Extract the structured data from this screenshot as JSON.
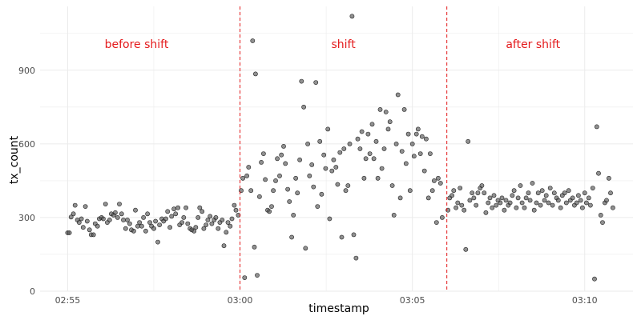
{
  "chart_data": {
    "type": "scatter",
    "title": "",
    "xlabel": "timestamp",
    "ylabel": "tx_count",
    "x_unit": "time (HH:MM)",
    "xlim": [
      "02:54:12",
      "03:11:24"
    ],
    "ylim": [
      0,
      1160
    ],
    "x_ticks": [
      "02:55",
      "03:00",
      "03:05",
      "03:10"
    ],
    "y_ticks": [
      0,
      300,
      600,
      900
    ],
    "grid": true,
    "colors": {
      "points": "#555555",
      "annotation": "#e41a1c",
      "grid": "#ebebeb"
    },
    "vlines": [
      "03:00",
      "03:06"
    ],
    "annotations": [
      {
        "x": "02:57:00",
        "y": 990,
        "text": "before shift"
      },
      {
        "x": "03:03:00",
        "y": 990,
        "text": "shift"
      },
      {
        "x": "03:08:30",
        "y": 990,
        "text": "after shift"
      }
    ],
    "points": [
      [
        "02:55:00",
        238
      ],
      [
        "02:55:03",
        238
      ],
      [
        "02:55:06",
        302
      ],
      [
        "02:55:10",
        315
      ],
      [
        "02:55:13",
        350
      ],
      [
        "02:55:17",
        290
      ],
      [
        "02:55:20",
        280
      ],
      [
        "02:55:24",
        295
      ],
      [
        "02:55:27",
        260
      ],
      [
        "02:55:31",
        345
      ],
      [
        "02:55:34",
        285
      ],
      [
        "02:55:38",
        250
      ],
      [
        "02:55:41",
        230
      ],
      [
        "02:55:45",
        230
      ],
      [
        "02:55:48",
        275
      ],
      [
        "02:55:52",
        265
      ],
      [
        "02:55:55",
        295
      ],
      [
        "02:55:59",
        300
      ],
      [
        "02:56:02",
        295
      ],
      [
        "02:56:06",
        355
      ],
      [
        "02:56:09",
        280
      ],
      [
        "02:56:13",
        290
      ],
      [
        "02:56:16",
        315
      ],
      [
        "02:56:20",
        310
      ],
      [
        "02:56:23",
        320
      ],
      [
        "02:56:27",
        300
      ],
      [
        "02:56:30",
        355
      ],
      [
        "02:56:34",
        315
      ],
      [
        "02:56:37",
        290
      ],
      [
        "02:56:41",
        255
      ],
      [
        "02:56:44",
        290
      ],
      [
        "02:56:48",
        275
      ],
      [
        "02:56:51",
        250
      ],
      [
        "02:56:55",
        245
      ],
      [
        "02:56:58",
        330
      ],
      [
        "02:57:02",
        265
      ],
      [
        "02:57:05",
        280
      ],
      [
        "02:57:09",
        265
      ],
      [
        "02:57:12",
        300
      ],
      [
        "02:57:16",
        245
      ],
      [
        "02:57:19",
        315
      ],
      [
        "02:57:23",
        280
      ],
      [
        "02:57:26",
        265
      ],
      [
        "02:57:30",
        255
      ],
      [
        "02:57:33",
        285
      ],
      [
        "02:57:37",
        200
      ],
      [
        "02:57:40",
        270
      ],
      [
        "02:57:44",
        295
      ],
      [
        "02:57:47",
        285
      ],
      [
        "02:57:51",
        295
      ],
      [
        "02:57:54",
        325
      ],
      [
        "02:57:58",
        260
      ],
      [
        "02:58:01",
        305
      ],
      [
        "02:58:05",
        335
      ],
      [
        "02:58:08",
        315
      ],
      [
        "02:58:12",
        340
      ],
      [
        "02:58:15",
        270
      ],
      [
        "02:58:19",
        280
      ],
      [
        "02:58:22",
        300
      ],
      [
        "02:58:26",
        340
      ],
      [
        "02:58:29",
        275
      ],
      [
        "02:58:33",
        255
      ],
      [
        "02:58:36",
        250
      ],
      [
        "02:58:40",
        245
      ],
      [
        "02:58:43",
        260
      ],
      [
        "02:58:47",
        300
      ],
      [
        "02:58:50",
        340
      ],
      [
        "02:58:54",
        325
      ],
      [
        "02:58:57",
        255
      ],
      [
        "02:59:01",
        270
      ],
      [
        "02:59:04",
        290
      ],
      [
        "02:59:08",
        305
      ],
      [
        "02:59:11",
        275
      ],
      [
        "02:59:15",
        290
      ],
      [
        "02:59:18",
        300
      ],
      [
        "02:59:22",
        255
      ],
      [
        "02:59:25",
        280
      ],
      [
        "02:59:29",
        290
      ],
      [
        "02:59:32",
        185
      ],
      [
        "02:59:36",
        240
      ],
      [
        "02:59:39",
        280
      ],
      [
        "02:59:43",
        265
      ],
      [
        "02:59:46",
        295
      ],
      [
        "02:59:50",
        350
      ],
      [
        "02:59:53",
        330
      ],
      [
        "02:59:57",
        310
      ],
      [
        "03:00:02",
        410
      ],
      [
        "03:00:05",
        460
      ],
      [
        "03:00:08",
        55
      ],
      [
        "03:00:12",
        470
      ],
      [
        "03:00:15",
        505
      ],
      [
        "03:00:19",
        410
      ],
      [
        "03:00:22",
        1020
      ],
      [
        "03:00:25",
        180
      ],
      [
        "03:00:27",
        885
      ],
      [
        "03:00:30",
        65
      ],
      [
        "03:00:34",
        385
      ],
      [
        "03:00:37",
        525
      ],
      [
        "03:00:41",
        560
      ],
      [
        "03:00:44",
        455
      ],
      [
        "03:00:48",
        330
      ],
      [
        "03:00:51",
        325
      ],
      [
        "03:00:55",
        345
      ],
      [
        "03:00:58",
        410
      ],
      [
        "03:01:02",
        450
      ],
      [
        "03:01:05",
        540
      ],
      [
        "03:01:09",
        470
      ],
      [
        "03:01:12",
        555
      ],
      [
        "03:01:16",
        590
      ],
      [
        "03:01:19",
        520
      ],
      [
        "03:01:23",
        415
      ],
      [
        "03:01:26",
        365
      ],
      [
        "03:01:30",
        220
      ],
      [
        "03:01:33",
        310
      ],
      [
        "03:01:37",
        460
      ],
      [
        "03:01:40",
        400
      ],
      [
        "03:01:44",
        535
      ],
      [
        "03:01:47",
        855
      ],
      [
        "03:01:51",
        750
      ],
      [
        "03:01:54",
        175
      ],
      [
        "03:01:58",
        600
      ],
      [
        "03:02:01",
        470
      ],
      [
        "03:02:05",
        515
      ],
      [
        "03:02:08",
        425
      ],
      [
        "03:02:12",
        850
      ],
      [
        "03:02:15",
        345
      ],
      [
        "03:02:19",
        610
      ],
      [
        "03:02:22",
        395
      ],
      [
        "03:02:26",
        555
      ],
      [
        "03:02:29",
        500
      ],
      [
        "03:02:33",
        660
      ],
      [
        "03:02:36",
        295
      ],
      [
        "03:02:40",
        490
      ],
      [
        "03:02:43",
        535
      ],
      [
        "03:02:47",
        505
      ],
      [
        "03:02:50",
        435
      ],
      [
        "03:02:54",
        565
      ],
      [
        "03:02:57",
        220
      ],
      [
        "03:03:01",
        580
      ],
      [
        "03:03:04",
        410
      ],
      [
        "03:03:08",
        430
      ],
      [
        "03:03:11",
        600
      ],
      [
        "03:03:15",
        1120
      ],
      [
        "03:03:18",
        230
      ],
      [
        "03:03:22",
        135
      ],
      [
        "03:03:25",
        620
      ],
      [
        "03:03:29",
        580
      ],
      [
        "03:03:32",
        650
      ],
      [
        "03:03:36",
        460
      ],
      [
        "03:03:39",
        540
      ],
      [
        "03:03:43",
        640
      ],
      [
        "03:03:46",
        560
      ],
      [
        "03:03:50",
        680
      ],
      [
        "03:03:53",
        540
      ],
      [
        "03:03:57",
        610
      ],
      [
        "03:04:00",
        460
      ],
      [
        "03:04:04",
        740
      ],
      [
        "03:04:07",
        500
      ],
      [
        "03:04:11",
        580
      ],
      [
        "03:04:14",
        730
      ],
      [
        "03:04:18",
        660
      ],
      [
        "03:04:21",
        690
      ],
      [
        "03:04:25",
        430
      ],
      [
        "03:04:28",
        310
      ],
      [
        "03:04:32",
        600
      ],
      [
        "03:04:35",
        800
      ],
      [
        "03:04:39",
        380
      ],
      [
        "03:04:42",
        570
      ],
      [
        "03:04:46",
        740
      ],
      [
        "03:04:49",
        520
      ],
      [
        "03:04:53",
        640
      ],
      [
        "03:04:56",
        410
      ],
      [
        "03:05:00",
        600
      ],
      [
        "03:05:03",
        550
      ],
      [
        "03:05:07",
        640
      ],
      [
        "03:05:10",
        660
      ],
      [
        "03:05:14",
        560
      ],
      [
        "03:05:17",
        630
      ],
      [
        "03:05:21",
        490
      ],
      [
        "03:05:24",
        620
      ],
      [
        "03:05:28",
        380
      ],
      [
        "03:05:31",
        560
      ],
      [
        "03:05:35",
        410
      ],
      [
        "03:05:38",
        450
      ],
      [
        "03:05:42",
        280
      ],
      [
        "03:05:45",
        460
      ],
      [
        "03:05:49",
        440
      ],
      [
        "03:05:52",
        300
      ],
      [
        "03:06:02",
        330
      ],
      [
        "03:06:05",
        380
      ],
      [
        "03:06:09",
        390
      ],
      [
        "03:06:12",
        410
      ],
      [
        "03:06:16",
        340
      ],
      [
        "03:06:19",
        360
      ],
      [
        "03:06:23",
        420
      ],
      [
        "03:06:26",
        350
      ],
      [
        "03:06:30",
        330
      ],
      [
        "03:06:33",
        170
      ],
      [
        "03:06:37",
        610
      ],
      [
        "03:06:40",
        370
      ],
      [
        "03:06:44",
        400
      ],
      [
        "03:06:47",
        380
      ],
      [
        "03:06:51",
        350
      ],
      [
        "03:06:54",
        400
      ],
      [
        "03:06:58",
        420
      ],
      [
        "03:07:01",
        430
      ],
      [
        "03:07:05",
        400
      ],
      [
        "03:07:08",
        320
      ],
      [
        "03:07:12",
        360
      ],
      [
        "03:07:15",
        380
      ],
      [
        "03:07:19",
        340
      ],
      [
        "03:07:22",
        390
      ],
      [
        "03:07:26",
        350
      ],
      [
        "03:07:29",
        370
      ],
      [
        "03:07:33",
        360
      ],
      [
        "03:07:36",
        380
      ],
      [
        "03:07:40",
        330
      ],
      [
        "03:07:43",
        370
      ],
      [
        "03:07:47",
        350
      ],
      [
        "03:07:50",
        360
      ],
      [
        "03:07:54",
        390
      ],
      [
        "03:07:57",
        410
      ],
      [
        "03:08:01",
        340
      ],
      [
        "03:08:04",
        380
      ],
      [
        "03:08:08",
        430
      ],
      [
        "03:08:11",
        360
      ],
      [
        "03:08:15",
        340
      ],
      [
        "03:08:18",
        380
      ],
      [
        "03:08:22",
        400
      ],
      [
        "03:08:25",
        370
      ],
      [
        "03:08:29",
        440
      ],
      [
        "03:08:32",
        330
      ],
      [
        "03:08:36",
        360
      ],
      [
        "03:08:39",
        400
      ],
      [
        "03:08:43",
        350
      ],
      [
        "03:08:46",
        410
      ],
      [
        "03:08:50",
        370
      ],
      [
        "03:08:53",
        390
      ],
      [
        "03:08:57",
        360
      ],
      [
        "03:09:00",
        420
      ],
      [
        "03:09:04",
        350
      ],
      [
        "03:09:07",
        400
      ],
      [
        "03:09:11",
        380
      ],
      [
        "03:09:14",
        370
      ],
      [
        "03:09:18",
        340
      ],
      [
        "03:09:21",
        390
      ],
      [
        "03:09:25",
        400
      ],
      [
        "03:09:28",
        360
      ],
      [
        "03:09:32",
        410
      ],
      [
        "03:09:35",
        370
      ],
      [
        "03:09:39",
        380
      ],
      [
        "03:09:42",
        350
      ],
      [
        "03:09:46",
        360
      ],
      [
        "03:09:49",
        390
      ],
      [
        "03:09:53",
        370
      ],
      [
        "03:09:56",
        340
      ],
      [
        "03:10:00",
        400
      ],
      [
        "03:10:03",
        360
      ],
      [
        "03:10:07",
        380
      ],
      [
        "03:10:10",
        350
      ],
      [
        "03:10:14",
        420
      ],
      [
        "03:10:17",
        50
      ],
      [
        "03:10:21",
        670
      ],
      [
        "03:10:24",
        480
      ],
      [
        "03:10:28",
        310
      ],
      [
        "03:10:31",
        280
      ],
      [
        "03:10:35",
        360
      ],
      [
        "03:10:38",
        370
      ],
      [
        "03:10:42",
        460
      ],
      [
        "03:10:45",
        400
      ],
      [
        "03:10:49",
        340
      ]
    ]
  }
}
